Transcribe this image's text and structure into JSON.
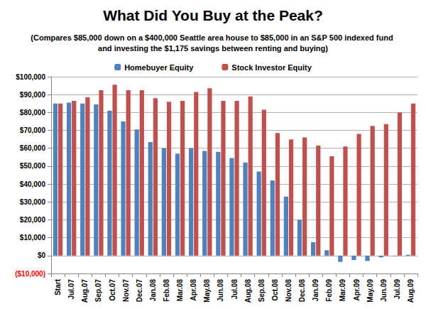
{
  "chart_data": {
    "type": "bar",
    "title": "What Did You Buy at the Peak?",
    "subtitle": "(Compares $85,000 down on a $400,000 Seattle area house to $85,000 in an S&P 500 indexed fund and investing the $1,175 savings between renting and buying)",
    "categories": [
      "Start",
      "Jul.07",
      "Aug.07",
      "Sep.07",
      "Oct.07",
      "Nov.07",
      "Dec.07",
      "Jan.08",
      "Feb.08",
      "Mar.08",
      "Apr.08",
      "May.08",
      "Jun.08",
      "Jul.08",
      "Aug.08",
      "Sep.08",
      "Oct.08",
      "Nov.08",
      "Dec.08",
      "Jan.09",
      "Feb.09",
      "Mar.09",
      "Apr.09",
      "May.09",
      "Jun.09",
      "Jul.09",
      "Aug.09"
    ],
    "series": [
      {
        "name": "Homebuyer Equity",
        "color": "#4f81bd",
        "values": [
          85000,
          85500,
          85000,
          84500,
          81000,
          75000,
          70500,
          63500,
          60000,
          57000,
          60000,
          58500,
          58000,
          54500,
          52000,
          47000,
          42000,
          33000,
          20000,
          7500,
          3000,
          -3500,
          -2500,
          -3000,
          -1000,
          -300,
          500
        ]
      },
      {
        "name": "Stock Investor Equity",
        "color": "#c0504d",
        "values": [
          85000,
          86500,
          88500,
          92500,
          95500,
          92500,
          92500,
          88000,
          86000,
          86500,
          91500,
          93500,
          86500,
          86500,
          89000,
          81500,
          68500,
          65000,
          66000,
          61500,
          55500,
          61000,
          68000,
          72500,
          73500,
          80000,
          85000
        ]
      }
    ],
    "ylim": [
      -10000,
      100000
    ],
    "yticks": [
      {
        "value": -10000,
        "label": "($10,000)"
      },
      {
        "value": 0,
        "label": "$0"
      },
      {
        "value": 10000,
        "label": "$10,000"
      },
      {
        "value": 20000,
        "label": "$20,000"
      },
      {
        "value": 30000,
        "label": "$30,000"
      },
      {
        "value": 40000,
        "label": "$40,000"
      },
      {
        "value": 50000,
        "label": "$50,000"
      },
      {
        "value": 60000,
        "label": "$60,000"
      },
      {
        "value": 70000,
        "label": "$70,000"
      },
      {
        "value": 80000,
        "label": "$80,000"
      },
      {
        "value": 90000,
        "label": "$90,000"
      },
      {
        "value": 100000,
        "label": "$100,000"
      }
    ],
    "grid": true,
    "legend": "top"
  }
}
